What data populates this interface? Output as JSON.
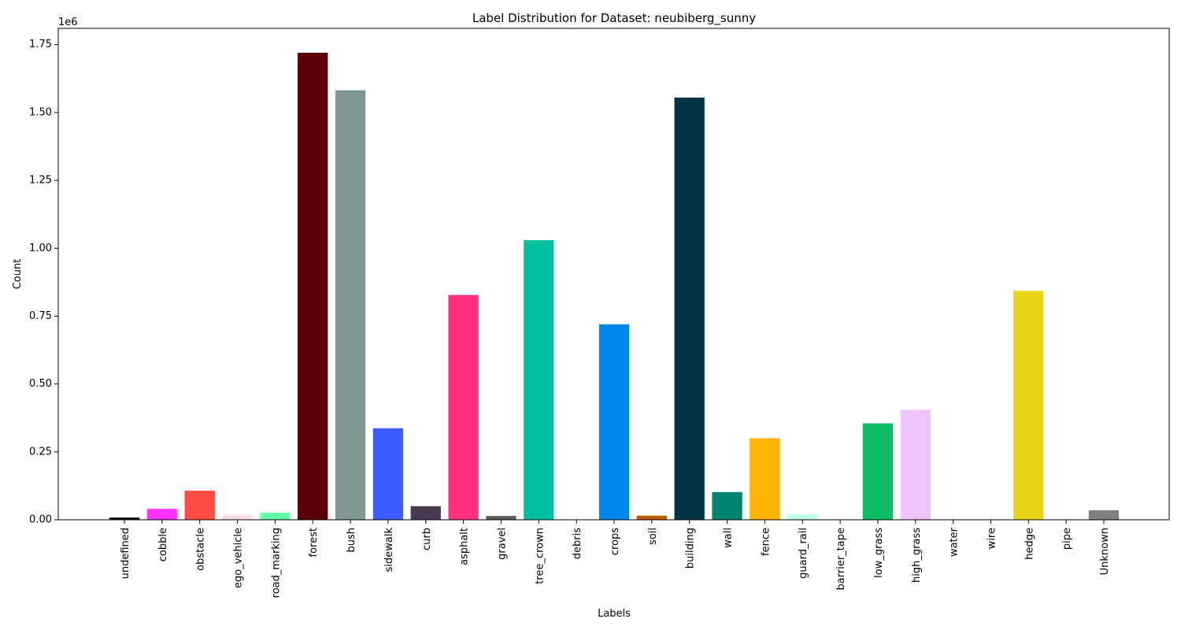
{
  "chart_data": {
    "type": "bar",
    "title": "Label Distribution for Dataset: neubiberg_sunny",
    "xlabel": "Labels",
    "ylabel": "Count",
    "y_offset_text": "1e6",
    "y_scale_factor": 1000000,
    "ylim": [
      0,
      1810000
    ],
    "yticks": [
      0,
      250000,
      500000,
      750000,
      1000000,
      1250000,
      1500000,
      1750000
    ],
    "ytick_labels": [
      "0.00",
      "0.25",
      "0.50",
      "0.75",
      "1.00",
      "1.25",
      "1.50",
      "1.75"
    ],
    "grid": false,
    "legend": "none",
    "categories": [
      "undefined",
      "cobble",
      "obstacle",
      "ego_vehicle",
      "road_marking",
      "forest",
      "bush",
      "sidewalk",
      "curb",
      "asphalt",
      "gravel",
      "tree_crown",
      "debris",
      "crops",
      "soil",
      "building",
      "wall",
      "fence",
      "guard_rail",
      "barrier_tape",
      "low_grass",
      "high_grass",
      "water",
      "wire",
      "hedge",
      "pipe",
      "Unknown"
    ],
    "values": [
      8000,
      40000,
      107000,
      17000,
      26000,
      1720000,
      1582000,
      337000,
      50000,
      828000,
      14000,
      1030000,
      0,
      720000,
      15000,
      1555000,
      102000,
      300000,
      20000,
      0,
      355000,
      405000,
      0,
      0,
      843000,
      0,
      35000
    ],
    "colors": [
      "#000000",
      "#ff33ff",
      "#ff4a46",
      "#ffd9e6",
      "#66ffaa",
      "#5a000a",
      "#809693",
      "#3d5cff",
      "#4a3b53",
      "#ff2f80",
      "#5a5a5a",
      "#00c0a0",
      "#ffffff",
      "#0086ed",
      "#c35a00",
      "#003347",
      "#00846f",
      "#ffb300",
      "#c0ffee",
      "#ffffff",
      "#0cbd66",
      "#eec3ff",
      "#ffffff",
      "#ffffff",
      "#e8d317",
      "#ffffff",
      "#808080"
    ]
  }
}
